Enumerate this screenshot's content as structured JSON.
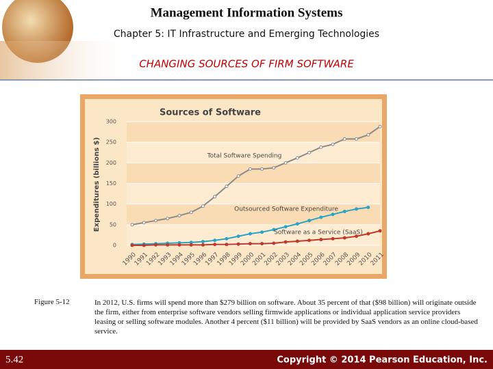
{
  "header": {
    "title": "Management Information Systems",
    "subtitle": "Chapter 5: IT Infrastructure and Emerging Technologies",
    "section": "CHANGING SOURCES OF FIRM SOFTWARE"
  },
  "chart_data": {
    "type": "line",
    "title": "Sources of Software",
    "y_label": "Expenditures (billions $)",
    "categories": [
      "1990",
      "1991",
      "1992",
      "1993",
      "1994",
      "1995",
      "1996",
      "1997",
      "1998",
      "1999",
      "2000",
      "2001",
      "2002",
      "2003",
      "2004",
      "2005",
      "2006",
      "2007",
      "2008",
      "2009",
      "2010",
      "2011"
    ],
    "series": [
      {
        "name": "Total Software Spending",
        "color": "#8a8a8a",
        "values": [
          50,
          55,
          60,
          65,
          72,
          80,
          95,
          118,
          143,
          168,
          185,
          185,
          188,
          200,
          212,
          225,
          238,
          245,
          258,
          258,
          268,
          288
        ]
      },
      {
        "name": "Outsourced Software Expenditure",
        "color": "#2aa3c4",
        "values": [
          2,
          3,
          4,
          5,
          6,
          7,
          9,
          12,
          16,
          22,
          28,
          32,
          38,
          45,
          52,
          60,
          68,
          75,
          82,
          88,
          92,
          null
        ]
      },
      {
        "name": "Software as a Service (SaaS)",
        "color": "#c0392b",
        "values": [
          0,
          0,
          1,
          1,
          1,
          1,
          1,
          2,
          2,
          3,
          4,
          4,
          5,
          8,
          10,
          12,
          14,
          16,
          18,
          22,
          28,
          35
        ]
      }
    ],
    "ylim": [
      0,
      300
    ],
    "yticks": [
      0,
      50,
      100,
      150,
      200,
      250,
      300
    ],
    "grid": true
  },
  "figure": {
    "label": "Figure 5-12",
    "caption": "In 2012, U.S. firms will spend more than $279 billion on software. About 35 percent of that ($98 billion) will originate outside the firm, either from enterprise software vendors selling firmwide applications or individual application service providers leasing or selling software modules. Another 4 percent ($11 billion) will be provided by SaaS vendors as an online cloud-based service."
  },
  "footer": {
    "page": "5.42",
    "copyright": "Copyright © 2014 Pearson Education, Inc."
  }
}
